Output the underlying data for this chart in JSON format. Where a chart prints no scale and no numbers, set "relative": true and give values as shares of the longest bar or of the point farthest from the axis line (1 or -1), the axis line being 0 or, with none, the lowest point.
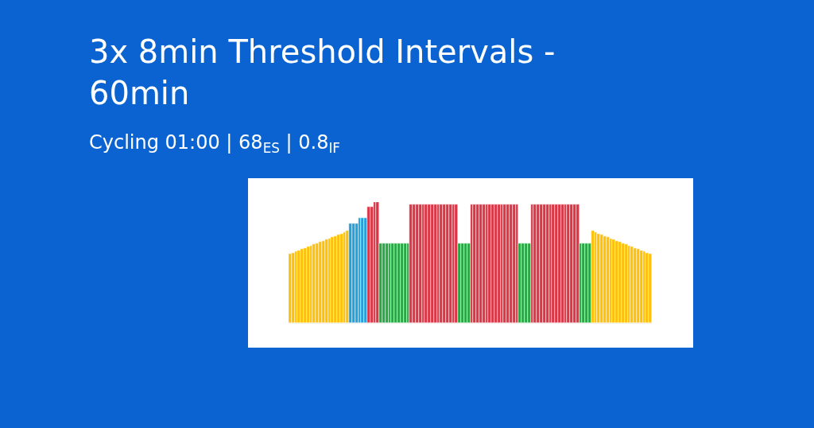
{
  "chart_data": {
    "type": "bar",
    "title": "3x 8min Threshold Intervals - 60min",
    "subtitle": "Cycling 01:00 | 68$_{ES}$ | 0.8$_{IF}$",
    "relative": true,
    "categories": [
      null,
      null,
      null,
      null,
      null,
      null,
      null,
      null,
      null,
      null,
      null,
      null,
      null,
      null,
      null,
      null,
      null,
      null,
      null,
      null,
      null,
      null,
      null,
      null,
      null,
      null,
      null,
      null,
      null,
      null,
      null,
      null,
      null,
      null,
      null,
      null,
      null,
      null,
      null,
      null,
      null,
      null,
      null,
      null,
      null,
      null,
      null,
      null,
      null,
      null,
      null,
      null,
      null,
      null,
      null,
      null,
      null,
      null,
      null,
      null,
      null,
      null,
      null,
      null,
      null,
      null,
      null,
      null,
      null,
      null,
      null,
      null,
      null,
      null,
      null,
      null,
      null,
      null,
      null,
      null,
      null,
      null,
      null,
      null,
      null,
      null,
      null,
      null,
      null,
      null,
      null,
      null,
      null,
      null,
      null,
      null,
      null,
      null,
      null,
      null,
      null,
      null,
      null,
      null,
      null,
      null,
      null,
      null,
      null,
      null,
      null,
      null,
      null,
      null,
      null,
      null,
      null,
      null,
      null,
      null
    ],
    "values": [
      0.57,
      0.58,
      0.59,
      0.6,
      0.61,
      0.62,
      0.63,
      0.64,
      0.65,
      0.66,
      0.67,
      0.68,
      0.69,
      0.7,
      0.71,
      0.72,
      0.73,
      0.74,
      0.75,
      0.76,
      0.82,
      0.82,
      0.82,
      0.87,
      0.87,
      0.87,
      0.96,
      0.96,
      1,
      1,
      0.66,
      0.66,
      0.66,
      0.66,
      0.66,
      0.66,
      0.66,
      0.66,
      0.66,
      0.66,
      0.98,
      0.98,
      0.98,
      0.98,
      0.98,
      0.98,
      0.98,
      0.98,
      0.98,
      0.98,
      0.98,
      0.98,
      0.98,
      0.98,
      0.98,
      0.98,
      0.66,
      0.66,
      0.66,
      0.66,
      0.98,
      0.98,
      0.98,
      0.98,
      0.98,
      0.98,
      0.98,
      0.98,
      0.98,
      0.98,
      0.98,
      0.98,
      0.98,
      0.98,
      0.98,
      0.98,
      0.66,
      0.66,
      0.66,
      0.66,
      0.98,
      0.98,
      0.98,
      0.98,
      0.98,
      0.98,
      0.98,
      0.98,
      0.98,
      0.98,
      0.98,
      0.98,
      0.98,
      0.98,
      0.98,
      0.98,
      0.66,
      0.66,
      0.66,
      0.66,
      0.76,
      0.75,
      0.74,
      0.73,
      0.72,
      0.71,
      0.7,
      0.69,
      0.68,
      0.67,
      0.66,
      0.65,
      0.64,
      0.63,
      0.62,
      0.61,
      0.6,
      0.59,
      0.58,
      0.57
    ],
    "colors": [
      "#ffc107",
      "#ffc107",
      "#ffc107",
      "#ffc107",
      "#ffc107",
      "#ffc107",
      "#ffc107",
      "#ffc107",
      "#ffc107",
      "#ffc107",
      "#ffc107",
      "#ffc107",
      "#ffc107",
      "#ffc107",
      "#ffc107",
      "#ffc107",
      "#ffc107",
      "#ffc107",
      "#ffc107",
      "#ffc107",
      "#26a0da",
      "#26a0da",
      "#26a0da",
      "#26a0da",
      "#26a0da",
      "#26a0da",
      "#dc3545",
      "#dc3545",
      "#dc3545",
      "#dc3545",
      "#28a745",
      "#28a745",
      "#28a745",
      "#28a745",
      "#28a745",
      "#28a745",
      "#28a745",
      "#28a745",
      "#28a745",
      "#28a745",
      "#dc3545",
      "#dc3545",
      "#dc3545",
      "#dc3545",
      "#dc3545",
      "#dc3545",
      "#dc3545",
      "#dc3545",
      "#dc3545",
      "#dc3545",
      "#dc3545",
      "#dc3545",
      "#dc3545",
      "#dc3545",
      "#dc3545",
      "#dc3545",
      "#28a745",
      "#28a745",
      "#28a745",
      "#28a745",
      "#dc3545",
      "#dc3545",
      "#dc3545",
      "#dc3545",
      "#dc3545",
      "#dc3545",
      "#dc3545",
      "#dc3545",
      "#dc3545",
      "#dc3545",
      "#dc3545",
      "#dc3545",
      "#dc3545",
      "#dc3545",
      "#dc3545",
      "#dc3545",
      "#28a745",
      "#28a745",
      "#28a745",
      "#28a745",
      "#dc3545",
      "#dc3545",
      "#dc3545",
      "#dc3545",
      "#dc3545",
      "#dc3545",
      "#dc3545",
      "#dc3545",
      "#dc3545",
      "#dc3545",
      "#dc3545",
      "#dc3545",
      "#dc3545",
      "#dc3545",
      "#dc3545",
      "#dc3545",
      "#28a745",
      "#28a745",
      "#28a745",
      "#28a745",
      "#ffc107",
      "#ffc107",
      "#ffc107",
      "#ffc107",
      "#ffc107",
      "#ffc107",
      "#ffc107",
      "#ffc107",
      "#ffc107",
      "#ffc107",
      "#ffc107",
      "#ffc107",
      "#ffc107",
      "#ffc107",
      "#ffc107",
      "#ffc107",
      "#ffc107",
      "#ffc107",
      "#ffc107",
      "#ffc107"
    ]
  }
}
